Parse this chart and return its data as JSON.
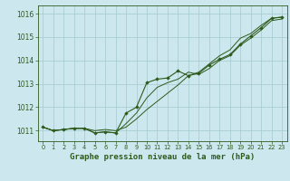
{
  "title": "Graphe pression niveau de la mer (hPa)",
  "background_color": "#cce8ee",
  "grid_color": "#aacdd4",
  "line_color": "#2d5a1b",
  "marker_color": "#2d5a1b",
  "xlim": [
    -0.5,
    23.5
  ],
  "ylim": [
    1010.55,
    1016.35
  ],
  "yticks": [
    1011,
    1012,
    1013,
    1014,
    1015,
    1016
  ],
  "xticks": [
    0,
    1,
    2,
    3,
    4,
    5,
    6,
    7,
    8,
    9,
    10,
    11,
    12,
    13,
    14,
    15,
    16,
    17,
    18,
    19,
    20,
    21,
    22,
    23
  ],
  "series1": [
    1011.15,
    1011.0,
    1011.05,
    1011.1,
    1011.1,
    1010.9,
    1010.95,
    1010.9,
    1011.75,
    1012.0,
    1013.05,
    1013.2,
    1013.25,
    1013.55,
    1013.35,
    1013.45,
    1013.8,
    1014.05,
    1014.25,
    1014.7,
    1015.05,
    1015.4,
    1015.8,
    1015.85
  ],
  "series2": [
    1011.15,
    1011.0,
    1011.05,
    1011.1,
    1011.1,
    1010.9,
    1010.95,
    1010.9,
    1011.3,
    1011.75,
    1012.4,
    1012.85,
    1013.05,
    1013.2,
    1013.5,
    1013.4,
    1013.65,
    1014.0,
    1014.2,
    1014.65,
    1014.95,
    1015.3,
    1015.7,
    1015.77
  ],
  "series3": [
    1011.15,
    1011.0,
    1011.05,
    1011.1,
    1011.1,
    1011.0,
    1011.05,
    1011.0,
    1011.15,
    1011.5,
    1011.9,
    1012.25,
    1012.6,
    1012.95,
    1013.35,
    1013.5,
    1013.85,
    1014.2,
    1014.45,
    1014.95,
    1015.15,
    1015.5,
    1015.8,
    1015.85
  ]
}
